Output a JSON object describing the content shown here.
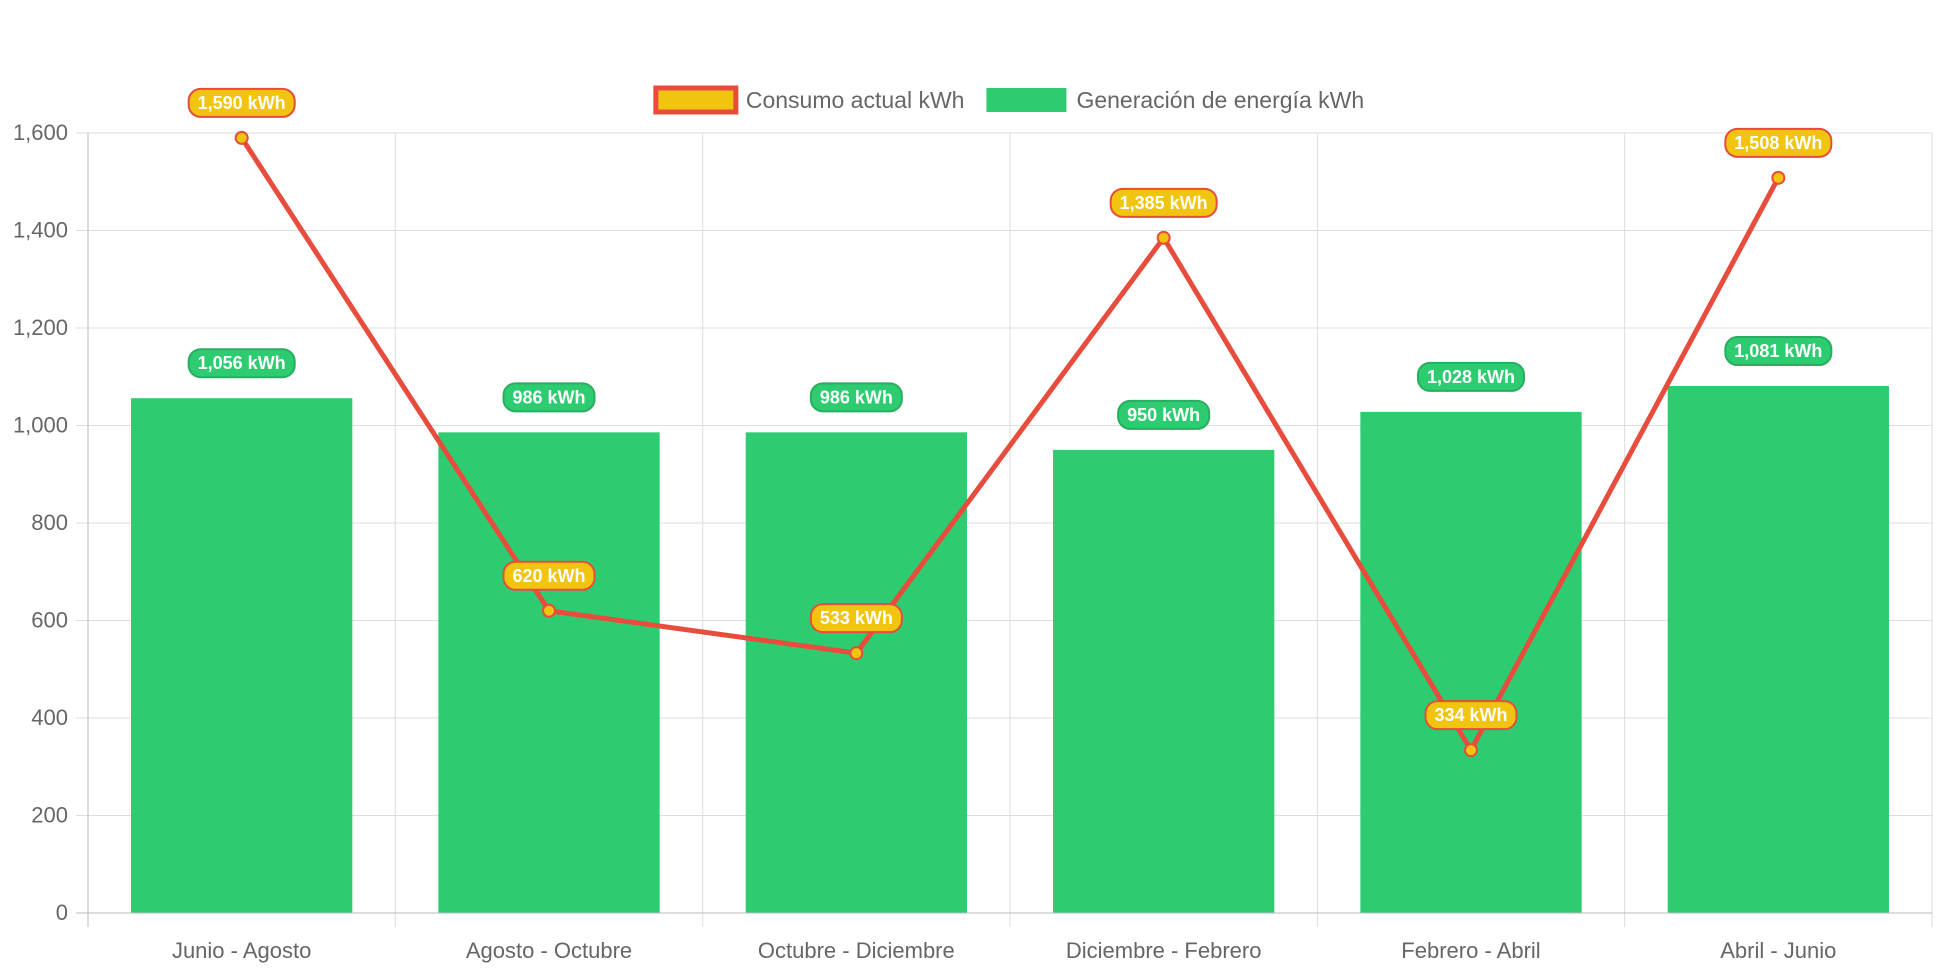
{
  "chart_data": {
    "type": "bar",
    "categories": [
      "Junio - Agosto",
      "Agosto - Octubre",
      "Octubre - Diciembre",
      "Diciembre - Febrero",
      "Febrero - Abril",
      "Abril - Junio"
    ],
    "series": [
      {
        "name": "Consumo actual kWh",
        "type": "line",
        "values": [
          1590,
          620,
          533,
          1385,
          334,
          1508
        ],
        "labels": [
          "1,590 kWh",
          "620 kWh",
          "533 kWh",
          "1,385 kWh",
          "334 kWh",
          "1,508 kWh"
        ],
        "color": "#e74c3c",
        "fill": "#f1c40f"
      },
      {
        "name": "Generación de energía kWh",
        "type": "bar",
        "values": [
          1056,
          986,
          986,
          950,
          1028,
          1081
        ],
        "labels": [
          "1,056 kWh",
          "986 kWh",
          "986 kWh",
          "950 kWh",
          "1,028 kWh",
          "1,081 kWh"
        ],
        "color": "#2ecc71"
      }
    ],
    "yticks": [
      "0",
      "200",
      "400",
      "600",
      "800",
      "1,000",
      "1,200",
      "1,400",
      "1,600"
    ],
    "ylim": [
      0,
      1600
    ],
    "grid": true,
    "legend": "top-center"
  }
}
